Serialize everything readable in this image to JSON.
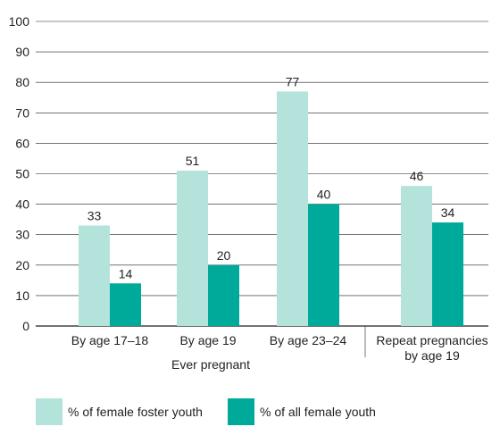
{
  "chart_data": {
    "type": "bar",
    "categories": [
      "By age 17–18",
      "By age 19",
      "By age 23–24",
      "Repeat pregnancies by age 19"
    ],
    "category_lines": [
      [
        "By age 17–18"
      ],
      [
        "By age 19"
      ],
      [
        "By age 23–24"
      ],
      [
        "Repeat pregnancies",
        "by age 19"
      ]
    ],
    "series": [
      {
        "name": "% of female foster youth",
        "values": [
          33,
          51,
          77,
          46
        ],
        "color": "#b3e3db"
      },
      {
        "name": "% of all female youth",
        "values": [
          14,
          20,
          40,
          34
        ],
        "color": "#00aa9b"
      }
    ],
    "group_labels": [
      {
        "label": "Ever pregnant",
        "categories": [
          0,
          1,
          2
        ]
      }
    ],
    "ylim": [
      0,
      100
    ],
    "yticks": [
      0,
      10,
      20,
      30,
      40,
      50,
      60,
      70,
      80,
      90,
      100
    ],
    "grid": true,
    "gridline_color": "#231f20",
    "legend_position": "bottom-left"
  }
}
